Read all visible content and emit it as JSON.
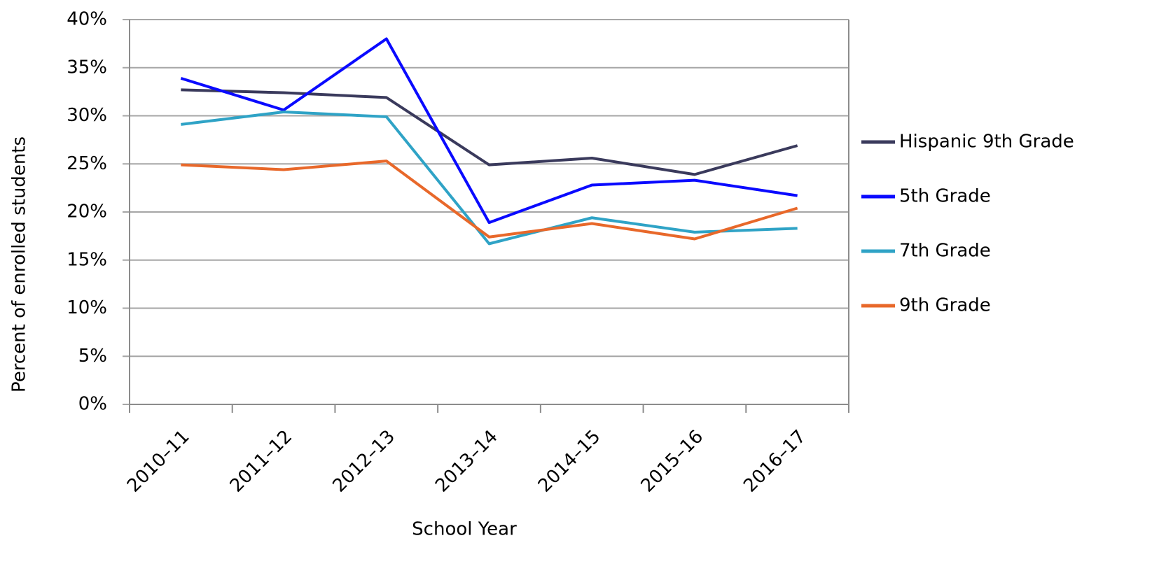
{
  "chart_data": {
    "type": "line",
    "x_label": "School Year",
    "y_label": "Percent of enrolled students",
    "categories": [
      "2010–11",
      "2011–12",
      "2012–13",
      "2013–14",
      "2014–15",
      "2015–16",
      "2016–17"
    ],
    "series": [
      {
        "name": "Hispanic 9th Grade",
        "color": "#3a3a5c",
        "values": [
          32.7,
          32.4,
          31.9,
          24.9,
          25.6,
          23.9,
          26.9
        ]
      },
      {
        "name": "5th Grade",
        "color": "#0a0aff",
        "values": [
          33.9,
          30.6,
          38.0,
          18.9,
          22.8,
          23.3,
          21.7
        ]
      },
      {
        "name": "7th Grade",
        "color": "#2fa3c6",
        "values": [
          29.1,
          30.4,
          29.9,
          16.7,
          19.4,
          17.9,
          18.3
        ]
      },
      {
        "name": "9th Grade",
        "color": "#e8682a",
        "values": [
          24.9,
          24.4,
          25.3,
          17.4,
          18.8,
          17.2,
          20.4
        ]
      }
    ],
    "ylim": [
      0,
      40
    ],
    "yticks": [
      {
        "value": 0,
        "label": "0%"
      },
      {
        "value": 5,
        "label": "5%"
      },
      {
        "value": 10,
        "label": "10%"
      },
      {
        "value": 15,
        "label": "15%"
      },
      {
        "value": 20,
        "label": "20%"
      },
      {
        "value": 25,
        "label": "25%"
      },
      {
        "value": 30,
        "label": "30%"
      },
      {
        "value": 35,
        "label": "35%"
      },
      {
        "value": 40,
        "label": "40%"
      }
    ],
    "grid": true,
    "legend": "right"
  }
}
